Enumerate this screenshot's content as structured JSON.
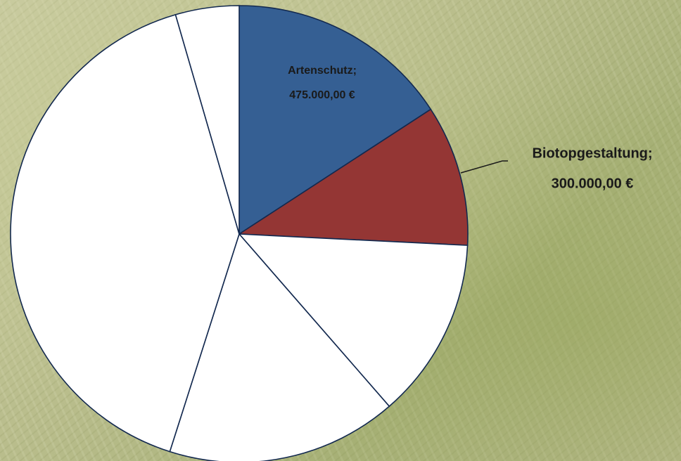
{
  "chart_data": {
    "type": "pie",
    "categories": [
      "Artenschutz;",
      "Biotopgestaltung;",
      null,
      null,
      null,
      null
    ],
    "values": [
      475000,
      300000,
      385000,
      490000,
      1220000,
      135000
    ],
    "value_labels": [
      "475.000,00 €",
      "300.000,00 €",
      null,
      null,
      null,
      null
    ],
    "colors": [
      "#355f93",
      "#943634",
      "#ffffff",
      "#ffffff",
      "#ffffff",
      "#ffffff"
    ]
  }
}
